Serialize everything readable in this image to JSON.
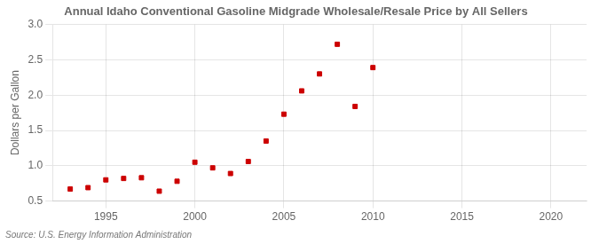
{
  "chart_data": {
    "type": "scatter",
    "title": "Annual Idaho Conventional Gasoline Midgrade Wholesale/Resale Price by All Sellers",
    "ylabel": "Dollars per Gallon",
    "annotation": "Source: U.S. Energy Information Administration",
    "x": [
      1993,
      1994,
      1995,
      1996,
      1997,
      1998,
      1999,
      2000,
      2001,
      2002,
      2003,
      2004,
      2005,
      2006,
      2007,
      2008,
      2009,
      2010
    ],
    "values": [
      0.67,
      0.69,
      0.8,
      0.82,
      0.83,
      0.64,
      0.78,
      1.05,
      0.97,
      0.89,
      1.06,
      1.35,
      1.73,
      2.06,
      2.3,
      2.72,
      1.84,
      2.39
    ],
    "color": "#cc0000",
    "marker": "square",
    "xlim": [
      1992,
      2022
    ],
    "xticks": [
      1995,
      2000,
      2005,
      2010,
      2015,
      2020
    ],
    "ylim": [
      0.5,
      3.0
    ],
    "yticks": [
      0.5,
      {
        "value": 1.0,
        "label": "1.0"
      },
      1.5,
      {
        "value": 2.0,
        "label": "2.0"
      },
      2.5,
      {
        "value": 3.0,
        "label": "3.0"
      }
    ],
    "grid": true
  }
}
